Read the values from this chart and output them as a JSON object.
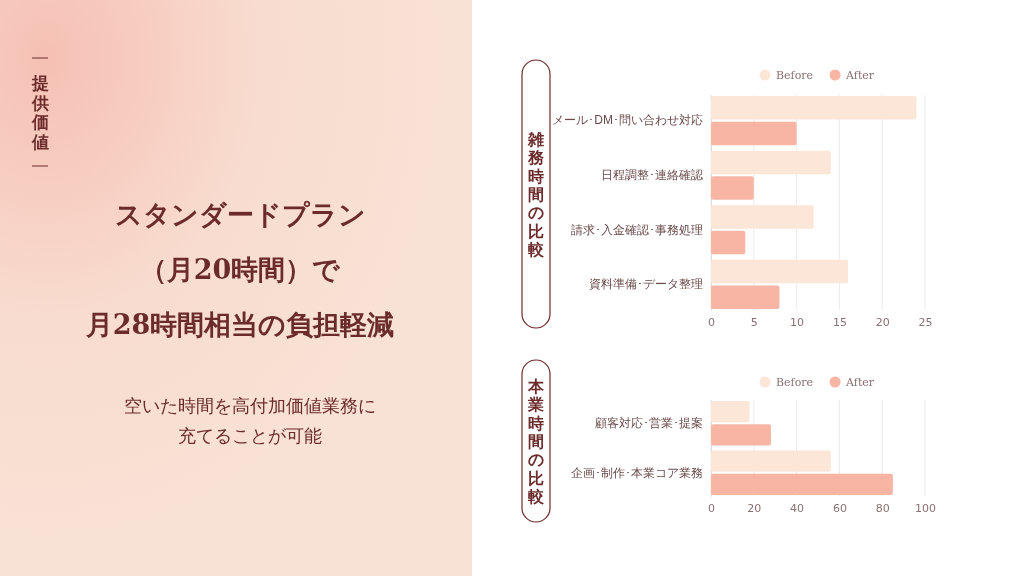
{
  "chart_data": [
    {
      "type": "other",
      "subtitle": "提供価値",
      "title": "スタンダードプラン（月20時間）で月28時間相当の負担軽減",
      "annotations": [
        "空いた時間を高付加価値業務に充てることが可能"
      ]
    },
    {
      "type": "bar",
      "orientation": "horizontal",
      "ylabel": "雑務時間の比較",
      "categories": [
        "メール･DM･問い合わせ対応",
        "日程調整･連絡確認",
        "請求･入金確認･事務処理",
        "資料準備･データ整理"
      ],
      "series": [
        {
          "name": "Before",
          "color": "#fbe6d8",
          "values": [
            24,
            14,
            12,
            16
          ]
        },
        {
          "name": "After",
          "color": "#f8b5a3",
          "values": [
            10,
            5,
            4,
            8
          ]
        }
      ],
      "xlim": [
        0,
        25
      ],
      "xticks": [
        0,
        5,
        10,
        15,
        20,
        25
      ],
      "grid": "x",
      "legend": "top"
    },
    {
      "type": "bar",
      "orientation": "horizontal",
      "ylabel": "本業時間の比較",
      "categories": [
        "顧客対応･営業･提案",
        "企画･制作･本業コア業務"
      ],
      "series": [
        {
          "name": "Before",
          "color": "#fbe6d8",
          "values": [
            18,
            56
          ]
        },
        {
          "name": "After",
          "color": "#f8b5a3",
          "values": [
            28,
            85
          ]
        }
      ],
      "xlim": [
        0,
        100
      ],
      "xticks": [
        0,
        20,
        40,
        60,
        80,
        100
      ],
      "grid": "x",
      "legend": "top"
    }
  ]
}
